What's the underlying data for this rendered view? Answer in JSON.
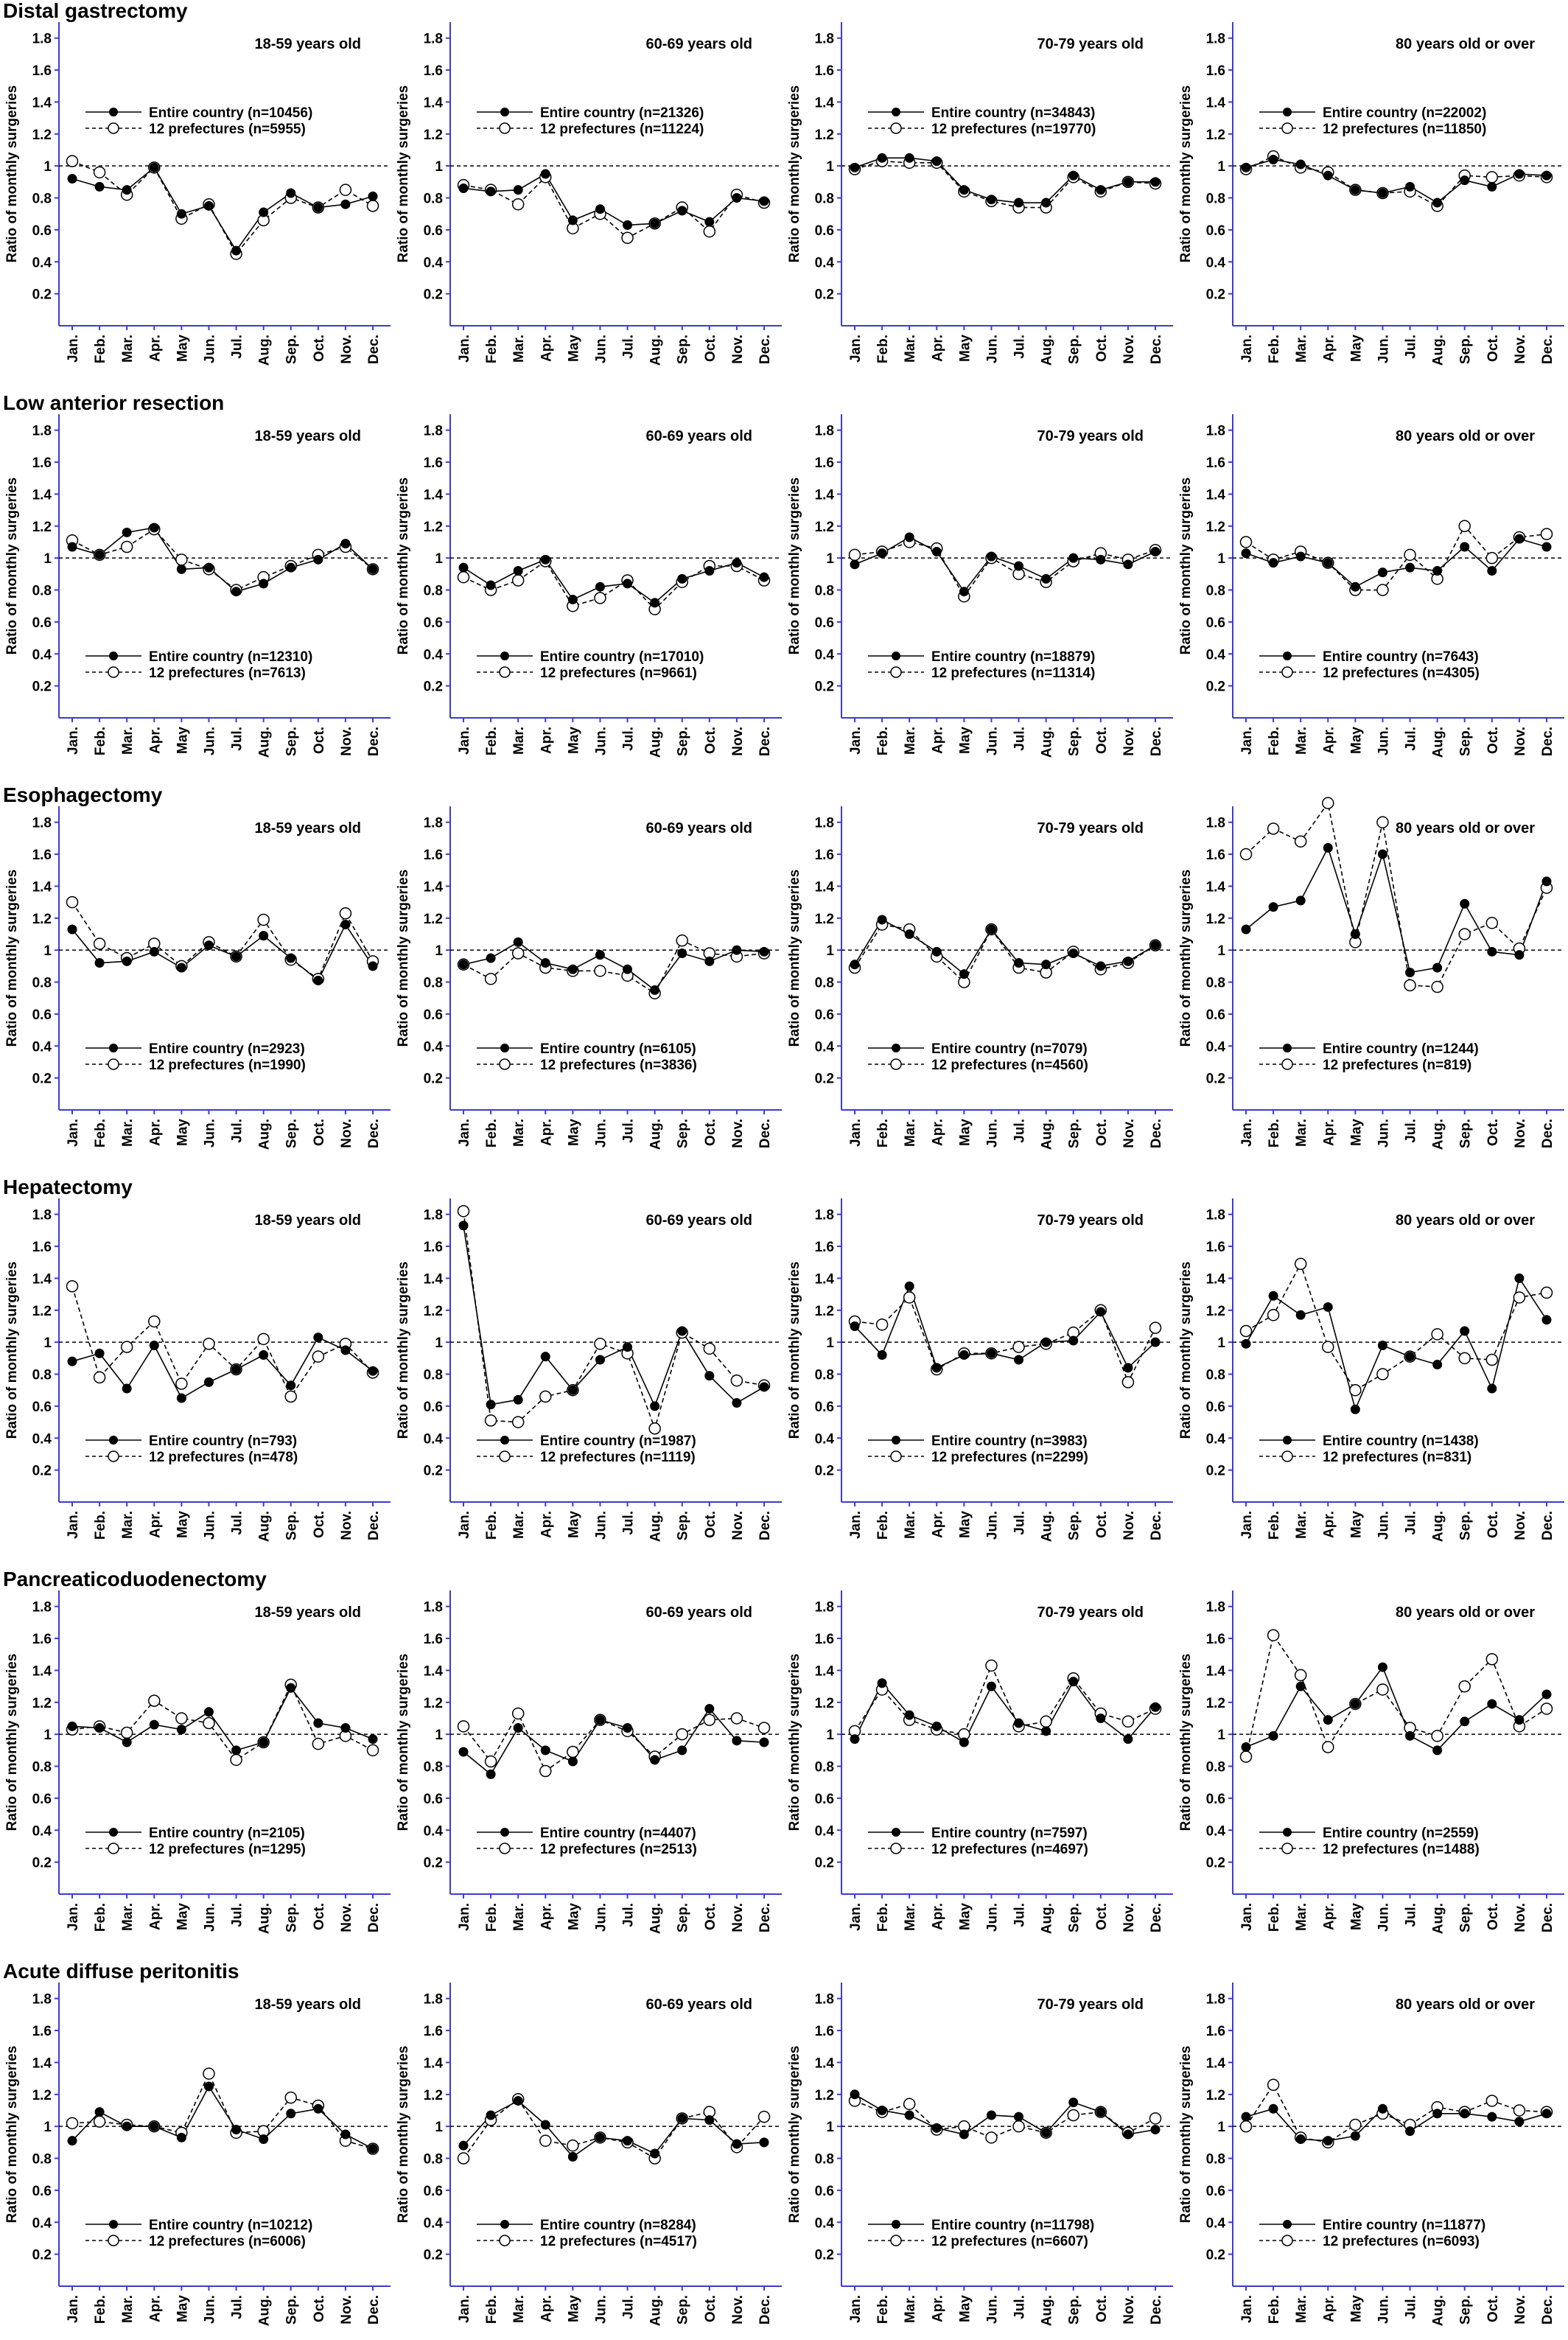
{
  "chart_data": {
    "type": "line",
    "months": [
      "Jan.",
      "Feb.",
      "Mar.",
      "Apr.",
      "May",
      "Jun.",
      "Jul.",
      "Aug.",
      "Sep.",
      "Oct.",
      "Nov.",
      "Dec."
    ],
    "ylabel": "Ratio of monthly surgeries",
    "ylim": [
      0,
      1.9
    ],
    "yticks": [
      "0.2",
      "0.4",
      "0.6",
      "0.8",
      "1",
      "1.2",
      "1.4",
      "1.6",
      "1.8"
    ],
    "reference_line": 1,
    "age_groups": [
      "18-59 years old",
      "60-69 years old",
      "70-79 years old",
      "80 years old or over"
    ],
    "series_names": [
      "Entire country",
      "12 prefectures"
    ],
    "rows": [
      {
        "title": "Distal gastrectomy",
        "legend_position": "top",
        "panels": [
          {
            "subtitle": "18-59 years old",
            "legend": [
              "Entire country (n=10456)",
              "12 prefectures (n=5955)"
            ],
            "entire": [
              0.92,
              0.87,
              0.85,
              0.99,
              0.7,
              0.75,
              0.47,
              0.71,
              0.83,
              0.74,
              0.76,
              0.81
            ],
            "pref": [
              1.03,
              0.96,
              0.82,
              0.99,
              0.67,
              0.76,
              0.45,
              0.66,
              0.8,
              0.74,
              0.85,
              0.75
            ]
          },
          {
            "subtitle": "60-69 years old",
            "legend": [
              "Entire country (n=21326)",
              "12 prefectures (n=11224)"
            ],
            "entire": [
              0.86,
              0.84,
              0.85,
              0.95,
              0.66,
              0.73,
              0.63,
              0.64,
              0.72,
              0.65,
              0.8,
              0.78
            ],
            "pref": [
              0.88,
              0.85,
              0.76,
              0.93,
              0.61,
              0.7,
              0.55,
              0.64,
              0.74,
              0.59,
              0.82,
              0.77
            ]
          },
          {
            "subtitle": "70-79 years old",
            "legend": [
              "Entire country (n=34843)",
              "12 prefectures (n=19770)"
            ],
            "entire": [
              0.99,
              1.05,
              1.05,
              1.03,
              0.85,
              0.79,
              0.77,
              0.77,
              0.94,
              0.85,
              0.9,
              0.9
            ],
            "pref": [
              0.98,
              1.03,
              1.02,
              1.02,
              0.84,
              0.78,
              0.74,
              0.74,
              0.93,
              0.84,
              0.9,
              0.89
            ]
          },
          {
            "subtitle": "80 years old or over",
            "legend": [
              "Entire country (n=22002)",
              "12 prefectures (n=11850)"
            ],
            "entire": [
              0.99,
              1.04,
              1.01,
              0.94,
              0.85,
              0.83,
              0.87,
              0.77,
              0.91,
              0.87,
              0.95,
              0.94
            ],
            "pref": [
              0.98,
              1.06,
              0.99,
              0.96,
              0.85,
              0.83,
              0.84,
              0.75,
              0.94,
              0.93,
              0.94,
              0.93
            ]
          }
        ]
      },
      {
        "title": "Low anterior resection",
        "legend_position": "bottom",
        "panels": [
          {
            "subtitle": "18-59 years old",
            "legend": [
              "Entire country (n=12310)",
              "12 prefectures (n=7613)"
            ],
            "entire": [
              1.07,
              1.02,
              1.16,
              1.19,
              0.93,
              0.94,
              0.79,
              0.84,
              0.94,
              0.99,
              1.09,
              0.93
            ],
            "pref": [
              1.11,
              1.02,
              1.07,
              1.18,
              0.99,
              0.93,
              0.8,
              0.88,
              0.95,
              1.02,
              1.07,
              0.93
            ]
          },
          {
            "subtitle": "60-69 years old",
            "legend": [
              "Entire country (n=17010)",
              "12 prefectures (n=9661)"
            ],
            "entire": [
              0.94,
              0.83,
              0.92,
              0.99,
              0.74,
              0.82,
              0.84,
              0.72,
              0.87,
              0.92,
              0.97,
              0.88
            ],
            "pref": [
              0.88,
              0.8,
              0.86,
              0.98,
              0.7,
              0.75,
              0.86,
              0.68,
              0.85,
              0.95,
              0.95,
              0.86
            ]
          },
          {
            "subtitle": "70-79 years old",
            "legend": [
              "Entire country (n=18879)",
              "12 prefectures (n=11314)"
            ],
            "entire": [
              0.96,
              1.03,
              1.13,
              1.04,
              0.79,
              1.01,
              0.95,
              0.87,
              1.0,
              0.99,
              0.96,
              1.04
            ],
            "pref": [
              1.02,
              1.04,
              1.1,
              1.06,
              0.76,
              1.0,
              0.9,
              0.85,
              0.98,
              1.03,
              0.99,
              1.05
            ]
          },
          {
            "subtitle": "80 years old or over",
            "legend": [
              "Entire country (n=7643)",
              "12 prefectures (n=4305)"
            ],
            "entire": [
              1.03,
              0.97,
              1.01,
              0.97,
              0.82,
              0.91,
              0.94,
              0.92,
              1.07,
              0.92,
              1.12,
              1.07
            ],
            "pref": [
              1.1,
              0.99,
              1.04,
              0.97,
              0.8,
              0.8,
              1.02,
              0.87,
              1.2,
              1.0,
              1.13,
              1.15
            ]
          }
        ]
      },
      {
        "title": "Esophagectomy",
        "legend_position": "bottom",
        "panels": [
          {
            "subtitle": "18-59 years old",
            "legend": [
              "Entire country (n=2923)",
              "12 prefectures (n=1990)"
            ],
            "entire": [
              1.13,
              0.92,
              0.93,
              0.99,
              0.89,
              1.03,
              0.96,
              1.09,
              0.95,
              0.81,
              1.16,
              0.9
            ],
            "pref": [
              1.3,
              1.04,
              0.95,
              1.04,
              0.9,
              1.05,
              0.96,
              1.19,
              0.94,
              0.82,
              1.23,
              0.93
            ]
          },
          {
            "subtitle": "60-69 years old",
            "legend": [
              "Entire country (n=6105)",
              "12 prefectures (n=3836)"
            ],
            "entire": [
              0.91,
              0.95,
              1.05,
              0.92,
              0.88,
              0.97,
              0.88,
              0.75,
              0.98,
              0.93,
              1.0,
              0.99
            ],
            "pref": [
              0.91,
              0.82,
              0.98,
              0.89,
              0.87,
              0.87,
              0.84,
              0.73,
              1.06,
              0.98,
              0.96,
              0.98
            ]
          },
          {
            "subtitle": "70-79 years old",
            "legend": [
              "Entire country (n=7079)",
              "12 prefectures (n=4560)"
            ],
            "entire": [
              0.91,
              1.19,
              1.1,
              0.99,
              0.85,
              1.13,
              0.92,
              0.91,
              0.98,
              0.9,
              0.93,
              1.03
            ],
            "pref": [
              0.89,
              1.16,
              1.13,
              0.96,
              0.8,
              1.13,
              0.89,
              0.86,
              0.99,
              0.88,
              0.92,
              1.03
            ]
          },
          {
            "subtitle": "80 years old or over",
            "legend": [
              "Entire country (n=1244)",
              "12 prefectures (n=819)"
            ],
            "entire": [
              1.13,
              1.27,
              1.31,
              1.64,
              1.1,
              1.6,
              0.86,
              0.89,
              1.29,
              0.99,
              0.97,
              1.43
            ],
            "pref": [
              1.6,
              1.76,
              1.68,
              1.92,
              1.05,
              1.8,
              0.78,
              0.77,
              1.1,
              1.17,
              1.01,
              1.39
            ]
          }
        ]
      },
      {
        "title": "Hepatectomy",
        "legend_position": "bottom",
        "panels": [
          {
            "subtitle": "18-59 years old",
            "legend": [
              "Entire country (n=793)",
              "12 prefectures (n=478)"
            ],
            "entire": [
              0.88,
              0.93,
              0.71,
              0.98,
              0.65,
              0.75,
              0.83,
              0.92,
              0.73,
              1.03,
              0.95,
              0.82
            ],
            "pref": [
              1.35,
              0.78,
              0.97,
              1.13,
              0.74,
              0.99,
              0.83,
              1.02,
              0.66,
              0.91,
              0.99,
              0.81
            ]
          },
          {
            "subtitle": "60-69 years old",
            "legend": [
              "Entire country (n=1987)",
              "12 prefectures (n=1119)"
            ],
            "entire": [
              1.73,
              0.61,
              0.64,
              0.91,
              0.7,
              0.89,
              0.97,
              0.6,
              1.07,
              0.79,
              0.62,
              0.72
            ],
            "pref": [
              1.82,
              0.51,
              0.5,
              0.66,
              0.7,
              0.99,
              0.93,
              0.46,
              1.06,
              0.96,
              0.76,
              0.73
            ]
          },
          {
            "subtitle": "70-79 years old",
            "legend": [
              "Entire country (n=3983)",
              "12 prefectures (n=2299)"
            ],
            "entire": [
              1.1,
              0.92,
              1.35,
              0.84,
              0.92,
              0.93,
              0.89,
              1.0,
              1.01,
              1.19,
              0.84,
              1.0
            ],
            "pref": [
              1.13,
              1.11,
              1.28,
              0.83,
              0.93,
              0.93,
              0.97,
              0.99,
              1.06,
              1.2,
              0.75,
              1.09
            ]
          },
          {
            "subtitle": "80 years old or over",
            "legend": [
              "Entire country (n=1438)",
              "12 prefectures (n=831)"
            ],
            "entire": [
              0.99,
              1.29,
              1.17,
              1.22,
              0.58,
              0.98,
              0.91,
              0.86,
              1.07,
              0.71,
              1.4,
              1.14
            ],
            "pref": [
              1.07,
              1.17,
              1.49,
              0.97,
              0.7,
              0.8,
              0.91,
              1.05,
              0.9,
              0.89,
              1.28,
              1.31
            ]
          }
        ]
      },
      {
        "title": "Pancreaticoduodenectomy",
        "legend_position": "bottom",
        "panels": [
          {
            "subtitle": "18-59 years old",
            "legend": [
              "Entire country (n=2105)",
              "12 prefectures (n=1295)"
            ],
            "entire": [
              1.05,
              1.04,
              0.95,
              1.06,
              1.03,
              1.14,
              0.9,
              0.95,
              1.29,
              1.07,
              1.04,
              0.97
            ],
            "pref": [
              1.03,
              1.05,
              1.01,
              1.21,
              1.1,
              1.07,
              0.84,
              0.95,
              1.31,
              0.94,
              0.99,
              0.9
            ]
          },
          {
            "subtitle": "60-69 years old",
            "legend": [
              "Entire country (n=4407)",
              "12 prefectures (n=2513)"
            ],
            "entire": [
              0.89,
              0.75,
              1.04,
              0.9,
              0.83,
              1.09,
              1.04,
              0.84,
              0.9,
              1.16,
              0.96,
              0.95
            ],
            "pref": [
              1.05,
              0.83,
              1.13,
              0.77,
              0.89,
              1.09,
              1.02,
              0.86,
              1.0,
              1.09,
              1.1,
              1.04
            ]
          },
          {
            "subtitle": "70-79 years old",
            "legend": [
              "Entire country (n=7597)",
              "12 prefectures (n=4697)"
            ],
            "entire": [
              0.97,
              1.32,
              1.12,
              1.05,
              0.95,
              1.3,
              1.07,
              1.02,
              1.33,
              1.1,
              0.97,
              1.17
            ],
            "pref": [
              1.02,
              1.28,
              1.09,
              1.03,
              1.0,
              1.43,
              1.05,
              1.08,
              1.35,
              1.13,
              1.08,
              1.16
            ]
          },
          {
            "subtitle": "80 years old or over",
            "legend": [
              "Entire country (n=2559)",
              "12 prefectures (n=1488)"
            ],
            "entire": [
              0.92,
              0.99,
              1.3,
              1.09,
              1.19,
              1.42,
              0.99,
              0.9,
              1.08,
              1.19,
              1.09,
              1.25
            ],
            "pref": [
              0.86,
              1.62,
              1.37,
              0.92,
              1.19,
              1.28,
              1.04,
              0.99,
              1.3,
              1.47,
              1.05,
              1.16
            ]
          }
        ]
      },
      {
        "title": "Acute diffuse peritonitis",
        "legend_position": "bottom",
        "panels": [
          {
            "subtitle": "18-59 years old",
            "legend": [
              "Entire country (n=10212)",
              "12 prefectures (n=6006)"
            ],
            "entire": [
              0.91,
              1.09,
              1.0,
              1.0,
              0.93,
              1.25,
              0.98,
              0.92,
              1.08,
              1.11,
              0.95,
              0.86
            ],
            "pref": [
              1.02,
              1.03,
              1.01,
              1.0,
              0.96,
              1.33,
              0.96,
              0.97,
              1.18,
              1.13,
              0.91,
              0.86
            ]
          },
          {
            "subtitle": "60-69 years old",
            "legend": [
              "Entire country (n=8284)",
              "12 prefectures (n=4517)"
            ],
            "entire": [
              0.88,
              1.07,
              1.16,
              1.01,
              0.81,
              0.93,
              0.91,
              0.83,
              1.05,
              1.04,
              0.89,
              0.9
            ],
            "pref": [
              0.8,
              1.04,
              1.17,
              0.91,
              0.88,
              0.93,
              0.9,
              0.8,
              1.05,
              1.09,
              0.87,
              1.06
            ]
          },
          {
            "subtitle": "70-79 years old",
            "legend": [
              "Entire country (n=11798)",
              "12 prefectures (n=6607)"
            ],
            "entire": [
              1.2,
              1.1,
              1.07,
              0.99,
              0.95,
              1.07,
              1.06,
              0.96,
              1.15,
              1.09,
              0.95,
              0.98
            ],
            "pref": [
              1.16,
              1.09,
              1.14,
              0.98,
              1.0,
              0.93,
              1.0,
              0.96,
              1.07,
              1.09,
              0.96,
              1.05
            ]
          },
          {
            "subtitle": "80 years old or over",
            "legend": [
              "Entire country (n=11877)",
              "12 prefectures (n=6093)"
            ],
            "entire": [
              1.06,
              1.11,
              0.92,
              0.91,
              0.94,
              1.11,
              0.97,
              1.08,
              1.08,
              1.06,
              1.03,
              1.08
            ],
            "pref": [
              1.0,
              1.26,
              0.93,
              0.9,
              1.01,
              1.08,
              1.01,
              1.12,
              1.09,
              1.16,
              1.1,
              1.09
            ]
          }
        ]
      }
    ]
  }
}
